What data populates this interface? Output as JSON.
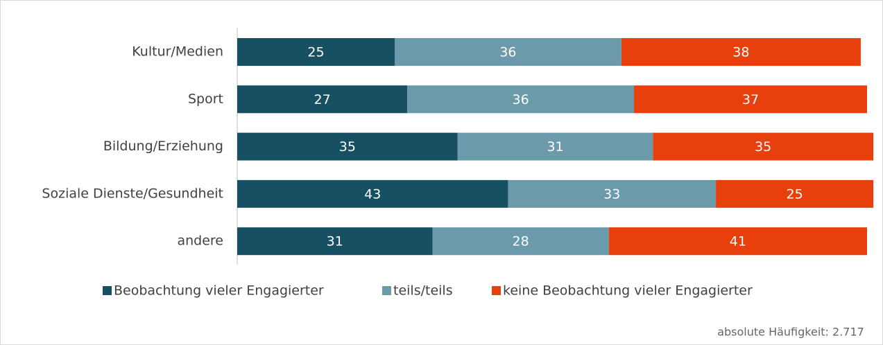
{
  "chart_data": {
    "type": "stacked-bar-horizontal",
    "categories": [
      "Kultur/Medien",
      "Sport",
      "Bildung/Erziehung",
      "Soziale Dienste/Gesundheit",
      "andere"
    ],
    "series": [
      {
        "name": "Beobachtung vieler Engagierter",
        "color": "#174f63",
        "values": [
          25,
          27,
          35,
          43,
          31
        ]
      },
      {
        "name": "teils/teils",
        "color": "#6b9aaa",
        "values": [
          36,
          36,
          31,
          33,
          28
        ]
      },
      {
        "name": "keine Beobachtung vieler Engagierter",
        "color": "#e8400c",
        "values": [
          38,
          37,
          35,
          25,
          41
        ]
      }
    ],
    "xlim": [
      0,
      100
    ],
    "note": "absolute Häufigkeit: 2.717"
  }
}
